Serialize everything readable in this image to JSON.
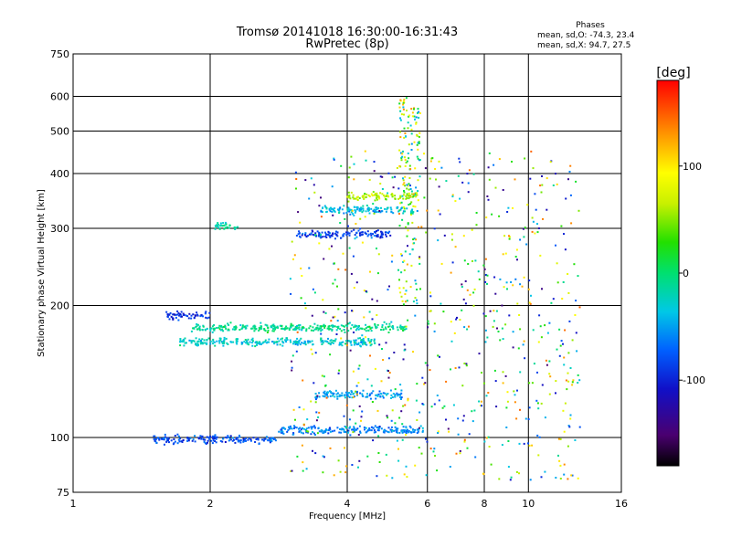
{
  "chart_data": {
    "type": "scatter",
    "title": "Tromsø 20141018 16:30:00-16:31:43",
    "subtitle": "RwPretec (8p)",
    "xlabel": "Frequency [MHz]",
    "ylabel": "Stationary phase Virtual Height [km]",
    "x_scale": "log",
    "y_scale": "log",
    "xlim": [
      1,
      16
    ],
    "ylim": [
      75,
      750
    ],
    "x_ticks": [
      1,
      2,
      4,
      6,
      8,
      10,
      16
    ],
    "x_tick_labels": [
      "1",
      "2",
      "4",
      "6",
      "8",
      "10",
      "16"
    ],
    "y_ticks": [
      75,
      100,
      200,
      300,
      400,
      500,
      600,
      750
    ],
    "y_tick_labels": [
      "75",
      "100",
      "200",
      "300",
      "400",
      "500",
      "600",
      "750"
    ],
    "grid": true,
    "colorbar": {
      "label": "[deg]",
      "range": [
        -180,
        180
      ],
      "ticks": [
        -100,
        0,
        100
      ],
      "tick_labels": [
        "-100",
        "0",
        "100"
      ],
      "colormap": "rainbow"
    },
    "phase_stats": {
      "heading": "Phases",
      "o_mode_label": "mean, sd,O:",
      "o_mode_values": "-74.3, 23.4",
      "x_mode_label": "mean, sd,X:",
      "x_mode_values": "94.7, 27.5"
    },
    "traces": [
      {
        "x_start": 1.5,
        "x_end": 2.8,
        "height": 99,
        "phase": -80
      },
      {
        "x_start": 2.8,
        "x_end": 5.9,
        "height": 104,
        "phase": -60
      },
      {
        "x_start": 1.7,
        "x_end": 4.6,
        "height": 165,
        "phase": -30
      },
      {
        "x_start": 1.8,
        "x_end": 5.4,
        "height": 178,
        "phase": -10
      },
      {
        "x_start": 1.6,
        "x_end": 2.0,
        "height": 190,
        "phase": -95
      },
      {
        "x_start": 3.4,
        "x_end": 5.3,
        "height": 125,
        "phase": -50
      },
      {
        "x_start": 3.1,
        "x_end": 5.0,
        "height": 291,
        "phase": -85
      },
      {
        "x_start": 3.5,
        "x_end": 5.6,
        "height": 330,
        "phase": -40
      },
      {
        "x_start": 4.0,
        "x_end": 5.7,
        "height": 355,
        "phase": 60
      },
      {
        "x_start": 2.05,
        "x_end": 2.3,
        "height": 303,
        "phase": -15
      }
    ],
    "series": [
      {
        "label_x_range": [
          1.2,
          16
        ],
        "label_y_range": [
          75,
          650
        ],
        "phase_range": [
          -150,
          150
        ]
      }
    ]
  }
}
